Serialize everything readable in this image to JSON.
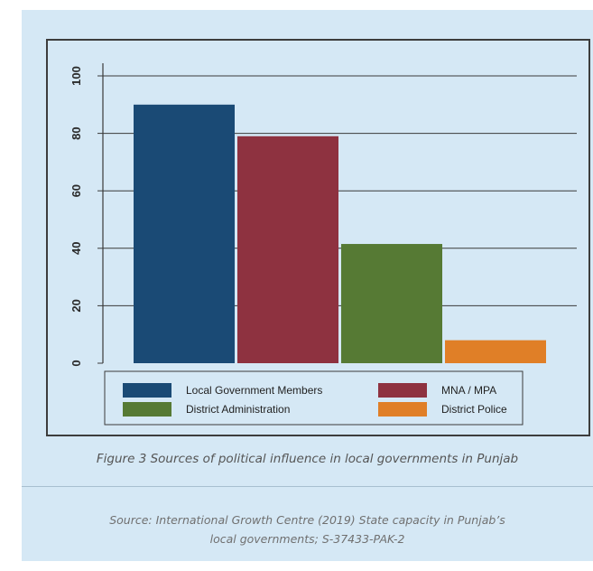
{
  "chart_data": {
    "type": "bar",
    "title": "",
    "xlabel": "",
    "ylabel": "",
    "ylim": [
      0,
      100
    ],
    "yticks": [
      "0",
      "20",
      "40",
      "60",
      "80",
      "100"
    ],
    "grid": true,
    "legend_placement": "bottom",
    "categories": [
      "Local Government Members",
      "MNA / MPA",
      "District Administration",
      "District Police"
    ],
    "values": [
      90,
      79,
      41.5,
      8
    ],
    "colors": [
      "#1a4a75",
      "#8e3240",
      "#567a34",
      "#e07f27"
    ]
  },
  "caption": "Figure 3 Sources of political influence in local governments in Punjab",
  "source": {
    "line1": "Source: International Growth Centre (2019)  State  capacity in Punjab’s",
    "line2": "local governments; S-37433-PAK-2"
  }
}
